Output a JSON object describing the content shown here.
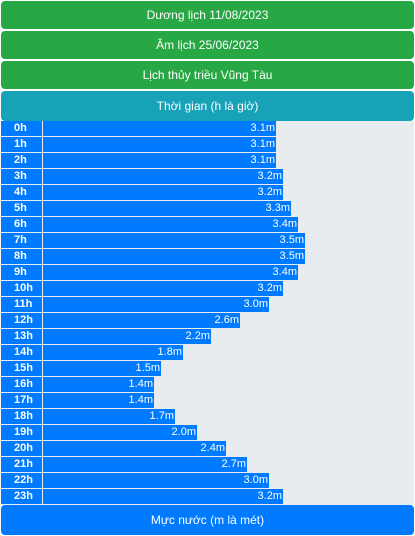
{
  "header": {
    "solar_date": "Dương lịch 11/08/2023",
    "lunar_date": "Âm lịch 25/06/2023",
    "title": "Lịch thủy triều Vũng Tàu",
    "time_label": "Thời gian (h là giờ)"
  },
  "footer": {
    "level_label": "Mực nước (m là mét)"
  },
  "chart_data": {
    "type": "bar",
    "orientation": "horizontal",
    "categories": [
      "0h",
      "1h",
      "2h",
      "3h",
      "4h",
      "5h",
      "6h",
      "7h",
      "8h",
      "9h",
      "10h",
      "11h",
      "12h",
      "13h",
      "14h",
      "15h",
      "16h",
      "17h",
      "18h",
      "19h",
      "20h",
      "21h",
      "22h",
      "23h"
    ],
    "values": [
      3.1,
      3.1,
      3.1,
      3.2,
      3.2,
      3.3,
      3.4,
      3.5,
      3.5,
      3.4,
      3.2,
      3.0,
      2.6,
      2.2,
      1.8,
      1.5,
      1.4,
      1.4,
      1.7,
      2.0,
      2.4,
      2.7,
      3.0,
      3.2
    ],
    "value_labels": [
      "3.1m",
      "3.1m",
      "3.1m",
      "3.2m",
      "3.2m",
      "3.3m",
      "3.4m",
      "3.5m",
      "3.5m",
      "3.4m",
      "3.2m",
      "3.0m",
      "2.6m",
      "2.2m",
      "1.8m",
      "1.5m",
      "1.4m",
      "1.4m",
      "1.7m",
      "2.0m",
      "2.4m",
      "2.7m",
      "3.0m",
      "3.2m"
    ],
    "xlabel": "Mực nước (m là mét)",
    "ylabel": "Thời gian (h là giờ)",
    "xlim": [
      0,
      5
    ],
    "colors": {
      "bar": "#007bff",
      "track": "#e9ecef"
    }
  }
}
